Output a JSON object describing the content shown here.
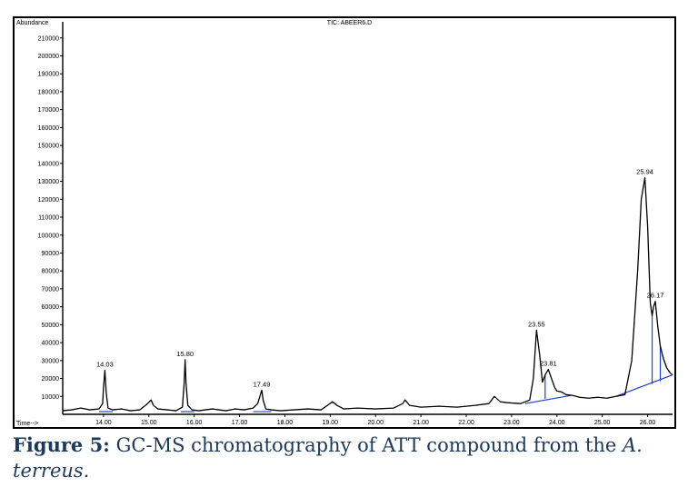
{
  "chart_data": {
    "type": "line",
    "title": "TIC: ABEER6.D",
    "ylabel": "Abundance",
    "xlabel": "Time-->",
    "xlim": [
      13.1,
      26.55
    ],
    "ylim": [
      0,
      218000
    ],
    "x_ticks": [
      "14.00",
      "15.00",
      "16.00",
      "17.00",
      "18.00",
      "19.00",
      "20.00",
      "21.00",
      "22.00",
      "23.00",
      "24.00",
      "25.00",
      "26.00"
    ],
    "y_ticks": [
      "10000",
      "20000",
      "30000",
      "40000",
      "50000",
      "60000",
      "70000",
      "80000",
      "90000",
      "100000",
      "110000",
      "120000",
      "130000",
      "140000",
      "150000",
      "160000",
      "170000",
      "180000",
      "190000",
      "200000",
      "210000"
    ],
    "grid": false,
    "series": [
      {
        "x": [
          13.1,
          13.3,
          13.5,
          13.7,
          13.9,
          13.98,
          14.0,
          14.03,
          14.06,
          14.1,
          14.2,
          14.4,
          14.6,
          14.8,
          14.95,
          15.05,
          15.1,
          15.2,
          15.4,
          15.6,
          15.74,
          15.78,
          15.8,
          15.82,
          15.86,
          15.95,
          16.1,
          16.4,
          16.7,
          16.9,
          17.1,
          17.3,
          17.4,
          17.46,
          17.49,
          17.52,
          17.58,
          17.7,
          17.9,
          18.2,
          18.5,
          18.8,
          19.05,
          19.15,
          19.3,
          19.6,
          20.0,
          20.4,
          20.6,
          20.65,
          20.75,
          21.0,
          21.4,
          21.8,
          22.2,
          22.5,
          22.62,
          22.75,
          22.9,
          23.2,
          23.4,
          23.48,
          23.55,
          23.62,
          23.68,
          23.74,
          23.81,
          23.88,
          23.95,
          24.0,
          24.1,
          24.2,
          24.35,
          24.5,
          24.7,
          24.9,
          25.1,
          25.3,
          25.5,
          25.65,
          25.78,
          25.86,
          25.94,
          26.0,
          26.06,
          26.1,
          26.13,
          26.17,
          26.22,
          26.28,
          26.35,
          26.42,
          26.5,
          26.55
        ],
        "y": [
          2000,
          2500,
          3500,
          2500,
          3000,
          6000,
          15000,
          24500,
          12000,
          3500,
          2500,
          3000,
          2000,
          2500,
          5500,
          8000,
          5000,
          3000,
          2500,
          2000,
          4000,
          18000,
          30500,
          17000,
          5000,
          2500,
          2000,
          3000,
          2000,
          3000,
          2500,
          3500,
          6000,
          11000,
          13500,
          8000,
          3000,
          2500,
          2000,
          2500,
          3000,
          2500,
          7000,
          5000,
          3000,
          3500,
          3000,
          3500,
          6000,
          8000,
          5000,
          4000,
          4500,
          4000,
          5000,
          6000,
          10000,
          7000,
          6500,
          6000,
          8000,
          20000,
          47000,
          33000,
          18000,
          22000,
          25000,
          20000,
          15000,
          13000,
          12500,
          11000,
          10500,
          9500,
          9000,
          9500,
          9000,
          10000,
          11000,
          30000,
          80000,
          120000,
          132000,
          105000,
          62000,
          55000,
          60000,
          63000,
          50000,
          38000,
          31000,
          26000,
          23000,
          22000
        ],
        "color": "#000000"
      }
    ],
    "peak_labels": [
      {
        "label": "14.03",
        "x": 14.03,
        "y": 24500
      },
      {
        "label": "15.80",
        "x": 15.8,
        "y": 30500
      },
      {
        "label": "17.49",
        "x": 17.49,
        "y": 13500
      },
      {
        "label": "23.55",
        "x": 23.55,
        "y": 47000
      },
      {
        "label": "23.81",
        "x": 23.81,
        "y": 25000
      },
      {
        "label": "25.94",
        "x": 25.94,
        "y": 132000
      },
      {
        "label": "26.17",
        "x": 26.17,
        "y": 63000
      }
    ],
    "baseline_color": "#1f3fd6"
  },
  "caption": {
    "label": "Figure 5:",
    "text": " GC-MS chromatography of ATT compound from the ",
    "italic": "A. terreus."
  }
}
